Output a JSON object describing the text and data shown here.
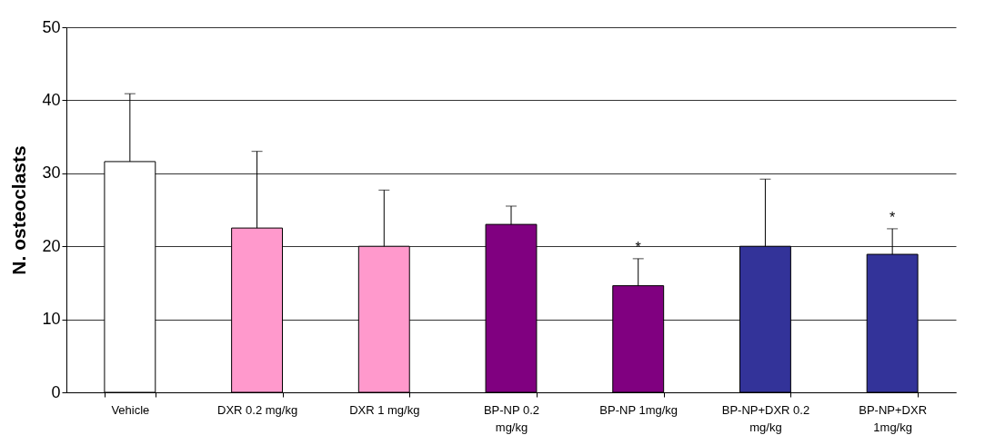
{
  "chart_data": {
    "type": "bar",
    "ylabel": "N. osteoclasts",
    "categories": [
      "Vehicle",
      "DXR 0.2 mg/kg",
      "DXR  1 mg/kg",
      "BP-NP 0.2 mg/kg",
      "BP-NP 1mg/kg",
      "BP-NP+DXR 0.2 mg/kg",
      "BP-NP+DXR 1mg/kg"
    ],
    "values": [
      31.6,
      22.5,
      20.0,
      23.0,
      14.6,
      20.0,
      18.9
    ],
    "errors": [
      [
        31.6,
        40.9
      ],
      [
        22.5,
        33.0
      ],
      [
        20.0,
        27.7
      ],
      [
        23.0,
        25.5
      ],
      [
        14.6,
        18.3
      ],
      [
        20.0,
        29.2
      ],
      [
        18.9,
        22.4
      ]
    ],
    "colors": [
      "#ffffff",
      "#ff99cc",
      "#ff99cc",
      "#800080",
      "#800080",
      "#333399",
      "#333399"
    ],
    "ylim": [
      0,
      50
    ],
    "yticks": [
      0,
      10,
      20,
      30,
      40,
      50
    ],
    "grid": "y",
    "annotations": [
      {
        "text": "*",
        "x": "BP-NP 1mg/kg",
        "y": 18.3
      },
      {
        "text": "*",
        "x": "BP-NP+DXR 1mg/kg",
        "y": 22.4
      }
    ]
  }
}
